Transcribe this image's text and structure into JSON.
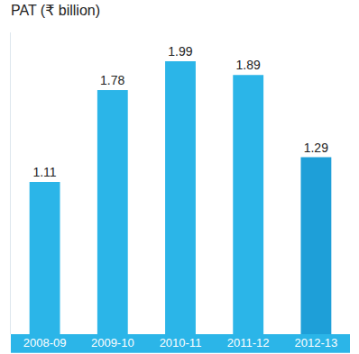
{
  "chart_data": {
    "type": "bar",
    "title": "PAT (₹ billion)",
    "categories": [
      "2008-09",
      "2009-10",
      "2010-11",
      "2011-12",
      "2012-13"
    ],
    "values": [
      1.11,
      1.78,
      1.99,
      1.89,
      1.29
    ],
    "colors": [
      "#2bb5e8",
      "#2bb5e8",
      "#2bb5e8",
      "#2bb5e8",
      "#1e9fd8"
    ],
    "ylim": [
      0,
      2.2
    ],
    "grid": false,
    "data_labels": true,
    "tick_labels": "x"
  }
}
